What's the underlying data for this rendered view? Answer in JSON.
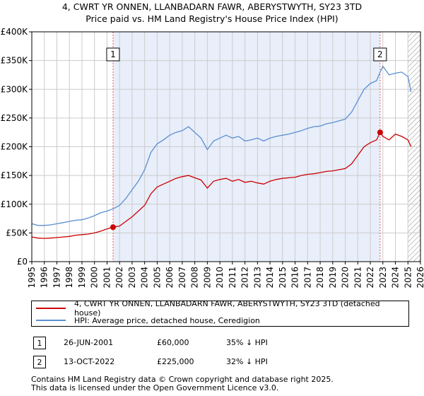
{
  "title_line1": "4, CWRT YR ONNEN, LLANBADARN FAWR, ABERYSTWYTH, SY23 3TD",
  "title_line2": "Price paid vs. HM Land Registry's House Price Index (HPI)",
  "colors": {
    "price_paid": "#cc0000",
    "hpi": "#5b8fd0",
    "shade": "#e8eefa",
    "marker_line": "#e06060",
    "grid": "#cccccc"
  },
  "legend": {
    "price_paid_label": "4, CWRT YR ONNEN, LLANBADARN FAWR, ABERYSTWYTH, SY23 3TD (detached house)",
    "hpi_label": "HPI: Average price, detached house, Ceredigion"
  },
  "transactions": [
    {
      "num": "1",
      "date": "26-JUN-2001",
      "price": "£60,000",
      "hpi_diff": "35% ↓ HPI"
    },
    {
      "num": "2",
      "date": "13-OCT-2022",
      "price": "£225,000",
      "hpi_diff": "32% ↓ HPI"
    }
  ],
  "footer_line1": "Contains HM Land Registry data © Crown copyright and database right 2025.",
  "footer_line2": "This data is licensed under the Open Government Licence v3.0.",
  "chart_data": {
    "type": "line",
    "title": "Price paid vs. HM Land Registry's House Price Index (HPI)",
    "xlim": [
      1995,
      2026
    ],
    "ylim": [
      0,
      400000
    ],
    "x_ticks": [
      "1995",
      "1996",
      "1997",
      "1998",
      "1999",
      "2000",
      "2001",
      "2002",
      "2003",
      "2004",
      "2005",
      "2006",
      "2007",
      "2008",
      "2009",
      "2010",
      "2011",
      "2012",
      "2013",
      "2014",
      "2015",
      "2016",
      "2017",
      "2018",
      "2019",
      "2020",
      "2021",
      "2022",
      "2023",
      "2024",
      "2025",
      "2026"
    ],
    "y_ticks": [
      {
        "value": 0,
        "label": "£0"
      },
      {
        "value": 50000,
        "label": "£50K"
      },
      {
        "value": 100000,
        "label": "£100K"
      },
      {
        "value": 150000,
        "label": "£150K"
      },
      {
        "value": 200000,
        "label": "£200K"
      },
      {
        "value": 250000,
        "label": "£250K"
      },
      {
        "value": 300000,
        "label": "£300K"
      },
      {
        "value": 350000,
        "label": "£350K"
      },
      {
        "value": 400000,
        "label": "£400K"
      }
    ],
    "shaded_range": [
      2001.48,
      2022.78
    ],
    "hatched_from": 2025.0,
    "sales": [
      {
        "label": "1",
        "x": 2001.48,
        "y": 60000
      },
      {
        "label": "2",
        "x": 2022.78,
        "y": 225000
      }
    ],
    "series": [
      {
        "name": "4, CWRT YR ONNEN, LLANBADARN FAWR, ABERYSTWYTH, SY23 3TD (detached house)",
        "color": "#cc0000",
        "points": [
          [
            1995.0,
            43000
          ],
          [
            1995.5,
            41000
          ],
          [
            1996.0,
            40500
          ],
          [
            1996.5,
            41000
          ],
          [
            1997.0,
            42000
          ],
          [
            1997.5,
            43000
          ],
          [
            1998.0,
            44000
          ],
          [
            1998.5,
            46000
          ],
          [
            1999.0,
            47000
          ],
          [
            1999.5,
            48000
          ],
          [
            2000.0,
            50000
          ],
          [
            2000.5,
            53000
          ],
          [
            2001.0,
            57000
          ],
          [
            2001.48,
            60000
          ],
          [
            2002.0,
            62000
          ],
          [
            2002.5,
            70000
          ],
          [
            2003.0,
            78000
          ],
          [
            2003.5,
            88000
          ],
          [
            2004.0,
            98000
          ],
          [
            2004.5,
            118000
          ],
          [
            2005.0,
            130000
          ],
          [
            2005.5,
            135000
          ],
          [
            2006.0,
            140000
          ],
          [
            2006.5,
            145000
          ],
          [
            2007.0,
            148000
          ],
          [
            2007.5,
            150000
          ],
          [
            2008.0,
            146000
          ],
          [
            2008.5,
            142000
          ],
          [
            2009.0,
            128000
          ],
          [
            2009.5,
            140000
          ],
          [
            2010.0,
            143000
          ],
          [
            2010.5,
            145000
          ],
          [
            2011.0,
            140000
          ],
          [
            2011.5,
            143000
          ],
          [
            2012.0,
            138000
          ],
          [
            2012.5,
            140000
          ],
          [
            2013.0,
            137000
          ],
          [
            2013.5,
            135000
          ],
          [
            2014.0,
            140000
          ],
          [
            2014.5,
            143000
          ],
          [
            2015.0,
            145000
          ],
          [
            2015.5,
            146000
          ],
          [
            2016.0,
            147000
          ],
          [
            2016.5,
            150000
          ],
          [
            2017.0,
            152000
          ],
          [
            2017.5,
            153000
          ],
          [
            2018.0,
            155000
          ],
          [
            2018.5,
            157000
          ],
          [
            2019.0,
            158000
          ],
          [
            2019.5,
            160000
          ],
          [
            2020.0,
            162000
          ],
          [
            2020.5,
            170000
          ],
          [
            2021.0,
            185000
          ],
          [
            2021.5,
            200000
          ],
          [
            2022.0,
            207000
          ],
          [
            2022.5,
            212000
          ],
          [
            2022.78,
            225000
          ],
          [
            2023.0,
            218000
          ],
          [
            2023.5,
            212000
          ],
          [
            2024.0,
            222000
          ],
          [
            2024.5,
            218000
          ],
          [
            2025.0,
            212000
          ],
          [
            2025.25,
            200000
          ]
        ]
      },
      {
        "name": "HPI: Average price, detached house, Ceredigion",
        "color": "#5b8fd0",
        "points": [
          [
            1995.0,
            66000
          ],
          [
            1995.5,
            63000
          ],
          [
            1996.0,
            63000
          ],
          [
            1996.5,
            64000
          ],
          [
            1997.0,
            66000
          ],
          [
            1997.5,
            68000
          ],
          [
            1998.0,
            70000
          ],
          [
            1998.5,
            72000
          ],
          [
            1999.0,
            73000
          ],
          [
            1999.5,
            76000
          ],
          [
            2000.0,
            80000
          ],
          [
            2000.5,
            85000
          ],
          [
            2001.0,
            88000
          ],
          [
            2001.48,
            92000
          ],
          [
            2002.0,
            98000
          ],
          [
            2002.5,
            110000
          ],
          [
            2003.0,
            125000
          ],
          [
            2003.5,
            140000
          ],
          [
            2004.0,
            160000
          ],
          [
            2004.5,
            190000
          ],
          [
            2005.0,
            205000
          ],
          [
            2005.5,
            212000
          ],
          [
            2006.0,
            220000
          ],
          [
            2006.5,
            225000
          ],
          [
            2007.0,
            228000
          ],
          [
            2007.5,
            235000
          ],
          [
            2008.0,
            225000
          ],
          [
            2008.5,
            215000
          ],
          [
            2009.0,
            195000
          ],
          [
            2009.5,
            210000
          ],
          [
            2010.0,
            215000
          ],
          [
            2010.5,
            220000
          ],
          [
            2011.0,
            215000
          ],
          [
            2011.5,
            218000
          ],
          [
            2012.0,
            210000
          ],
          [
            2012.5,
            212000
          ],
          [
            2013.0,
            215000
          ],
          [
            2013.5,
            210000
          ],
          [
            2014.0,
            215000
          ],
          [
            2014.5,
            218000
          ],
          [
            2015.0,
            220000
          ],
          [
            2015.5,
            222000
          ],
          [
            2016.0,
            225000
          ],
          [
            2016.5,
            228000
          ],
          [
            2017.0,
            232000
          ],
          [
            2017.5,
            235000
          ],
          [
            2018.0,
            236000
          ],
          [
            2018.5,
            240000
          ],
          [
            2019.0,
            242000
          ],
          [
            2019.5,
            245000
          ],
          [
            2020.0,
            248000
          ],
          [
            2020.5,
            260000
          ],
          [
            2021.0,
            280000
          ],
          [
            2021.5,
            300000
          ],
          [
            2022.0,
            310000
          ],
          [
            2022.5,
            315000
          ],
          [
            2022.78,
            330000
          ],
          [
            2023.0,
            340000
          ],
          [
            2023.5,
            325000
          ],
          [
            2024.0,
            328000
          ],
          [
            2024.5,
            330000
          ],
          [
            2025.0,
            322000
          ],
          [
            2025.25,
            295000
          ]
        ]
      }
    ]
  }
}
